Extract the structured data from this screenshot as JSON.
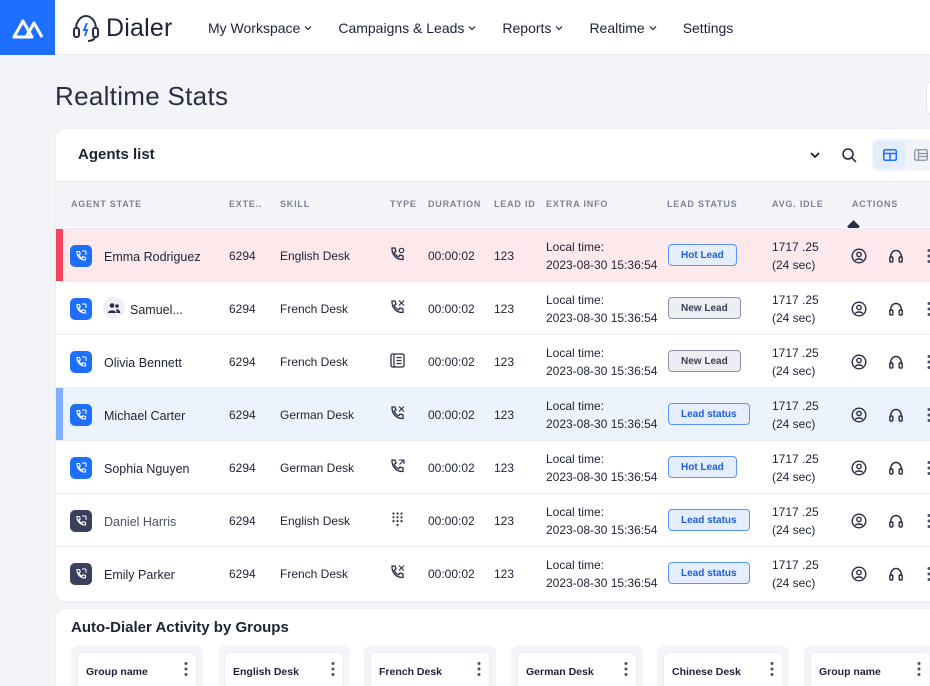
{
  "brand": {
    "name": "Dialer"
  },
  "nav": [
    {
      "label": "My Workspace",
      "has_menu": true
    },
    {
      "label": "Campaigns & Leads",
      "has_menu": true
    },
    {
      "label": "Reports",
      "has_menu": true
    },
    {
      "label": "Realtime",
      "has_menu": true
    },
    {
      "label": "Settings",
      "has_menu": false
    }
  ],
  "page": {
    "title": "Realtime Stats"
  },
  "agents": {
    "title": "Agents list",
    "columns": [
      "AGENT STATE",
      "EXTE..",
      "SKILL",
      "TYPE",
      "DURATION",
      "LEAD ID",
      "EXTRA INFO",
      "LEAD STATUS",
      "AVG. IDLE",
      "ACTIONS"
    ],
    "rows": [
      {
        "name": "Emma Rodriguez",
        "ext": "6294",
        "skill": "English Desk",
        "type": "phone-incoming-icon",
        "duration": "00:00:02",
        "lead_id": "123",
        "info_label": "Local time:",
        "info_time": "2023-08-30 15:36:54",
        "lead_status": "Hot Lead",
        "idle_value": "1717 .25",
        "idle_sec": "(24 sec)"
      },
      {
        "name": "Samuel...",
        "ext": "6294",
        "skill": "French Desk",
        "type": "phone-outgoing-icon",
        "duration": "00:00:02",
        "lead_id": "123",
        "info_label": "Local time:",
        "info_time": "2023-08-30 15:36:54",
        "lead_status": "New Lead",
        "idle_value": "1717 .25",
        "idle_sec": "(24 sec)"
      },
      {
        "name": "Olivia Bennett",
        "ext": "6294",
        "skill": "French Desk",
        "type": "document-icon",
        "duration": "00:00:02",
        "lead_id": "123",
        "info_label": "Local time:",
        "info_time": "2023-08-30 15:36:54",
        "lead_status": "New Lead",
        "idle_value": "1717 .25",
        "idle_sec": "(24 sec)"
      },
      {
        "name": "Michael Carter",
        "ext": "6294",
        "skill": "German Desk",
        "type": "phone-outgoing-icon",
        "duration": "00:00:02",
        "lead_id": "123",
        "info_label": "Local time:",
        "info_time": "2023-08-30 15:36:54",
        "lead_status": "Lead status",
        "idle_value": "1717 .25",
        "idle_sec": "(24 sec)"
      },
      {
        "name": "Sophia Nguyen",
        "ext": "6294",
        "skill": "German Desk",
        "type": "phone-incoming-icon",
        "duration": "00:00:02",
        "lead_id": "123",
        "info_label": "Local time:",
        "info_time": "2023-08-30 15:36:54",
        "lead_status": "Hot Lead",
        "idle_value": "1717 .25",
        "idle_sec": "(24 sec)"
      },
      {
        "name": "Daniel Harris",
        "ext": "6294",
        "skill": "English Desk",
        "type": "dialpad-icon",
        "duration": "00:00:02",
        "lead_id": "123",
        "info_label": "Local time:",
        "info_time": "2023-08-30 15:36:54",
        "lead_status": "Lead status",
        "idle_value": "1717 .25",
        "idle_sec": "(24 sec)"
      },
      {
        "name": "Emily Parker",
        "ext": "6294",
        "skill": "French Desk",
        "type": "phone-outgoing-icon",
        "duration": "00:00:02",
        "lead_id": "123",
        "info_label": "Local time:",
        "info_time": "2023-08-30 15:36:54",
        "lead_status": "Lead status",
        "idle_value": "1717 .25",
        "idle_sec": "(24 sec)"
      }
    ]
  },
  "auto_dialer": {
    "title": "Auto-Dialer Activity by Groups",
    "groups": [
      "Group name",
      "English Desk",
      "French Desk",
      "German Desk",
      "Chinese Desk",
      "Group name"
    ]
  },
  "colors": {
    "accent": "#1f6fff",
    "hot_row": "#fde8eb",
    "hot_flag": "#f2455f",
    "blue_row": "#edf3fd",
    "blue_flag": "#7fb0ff"
  }
}
